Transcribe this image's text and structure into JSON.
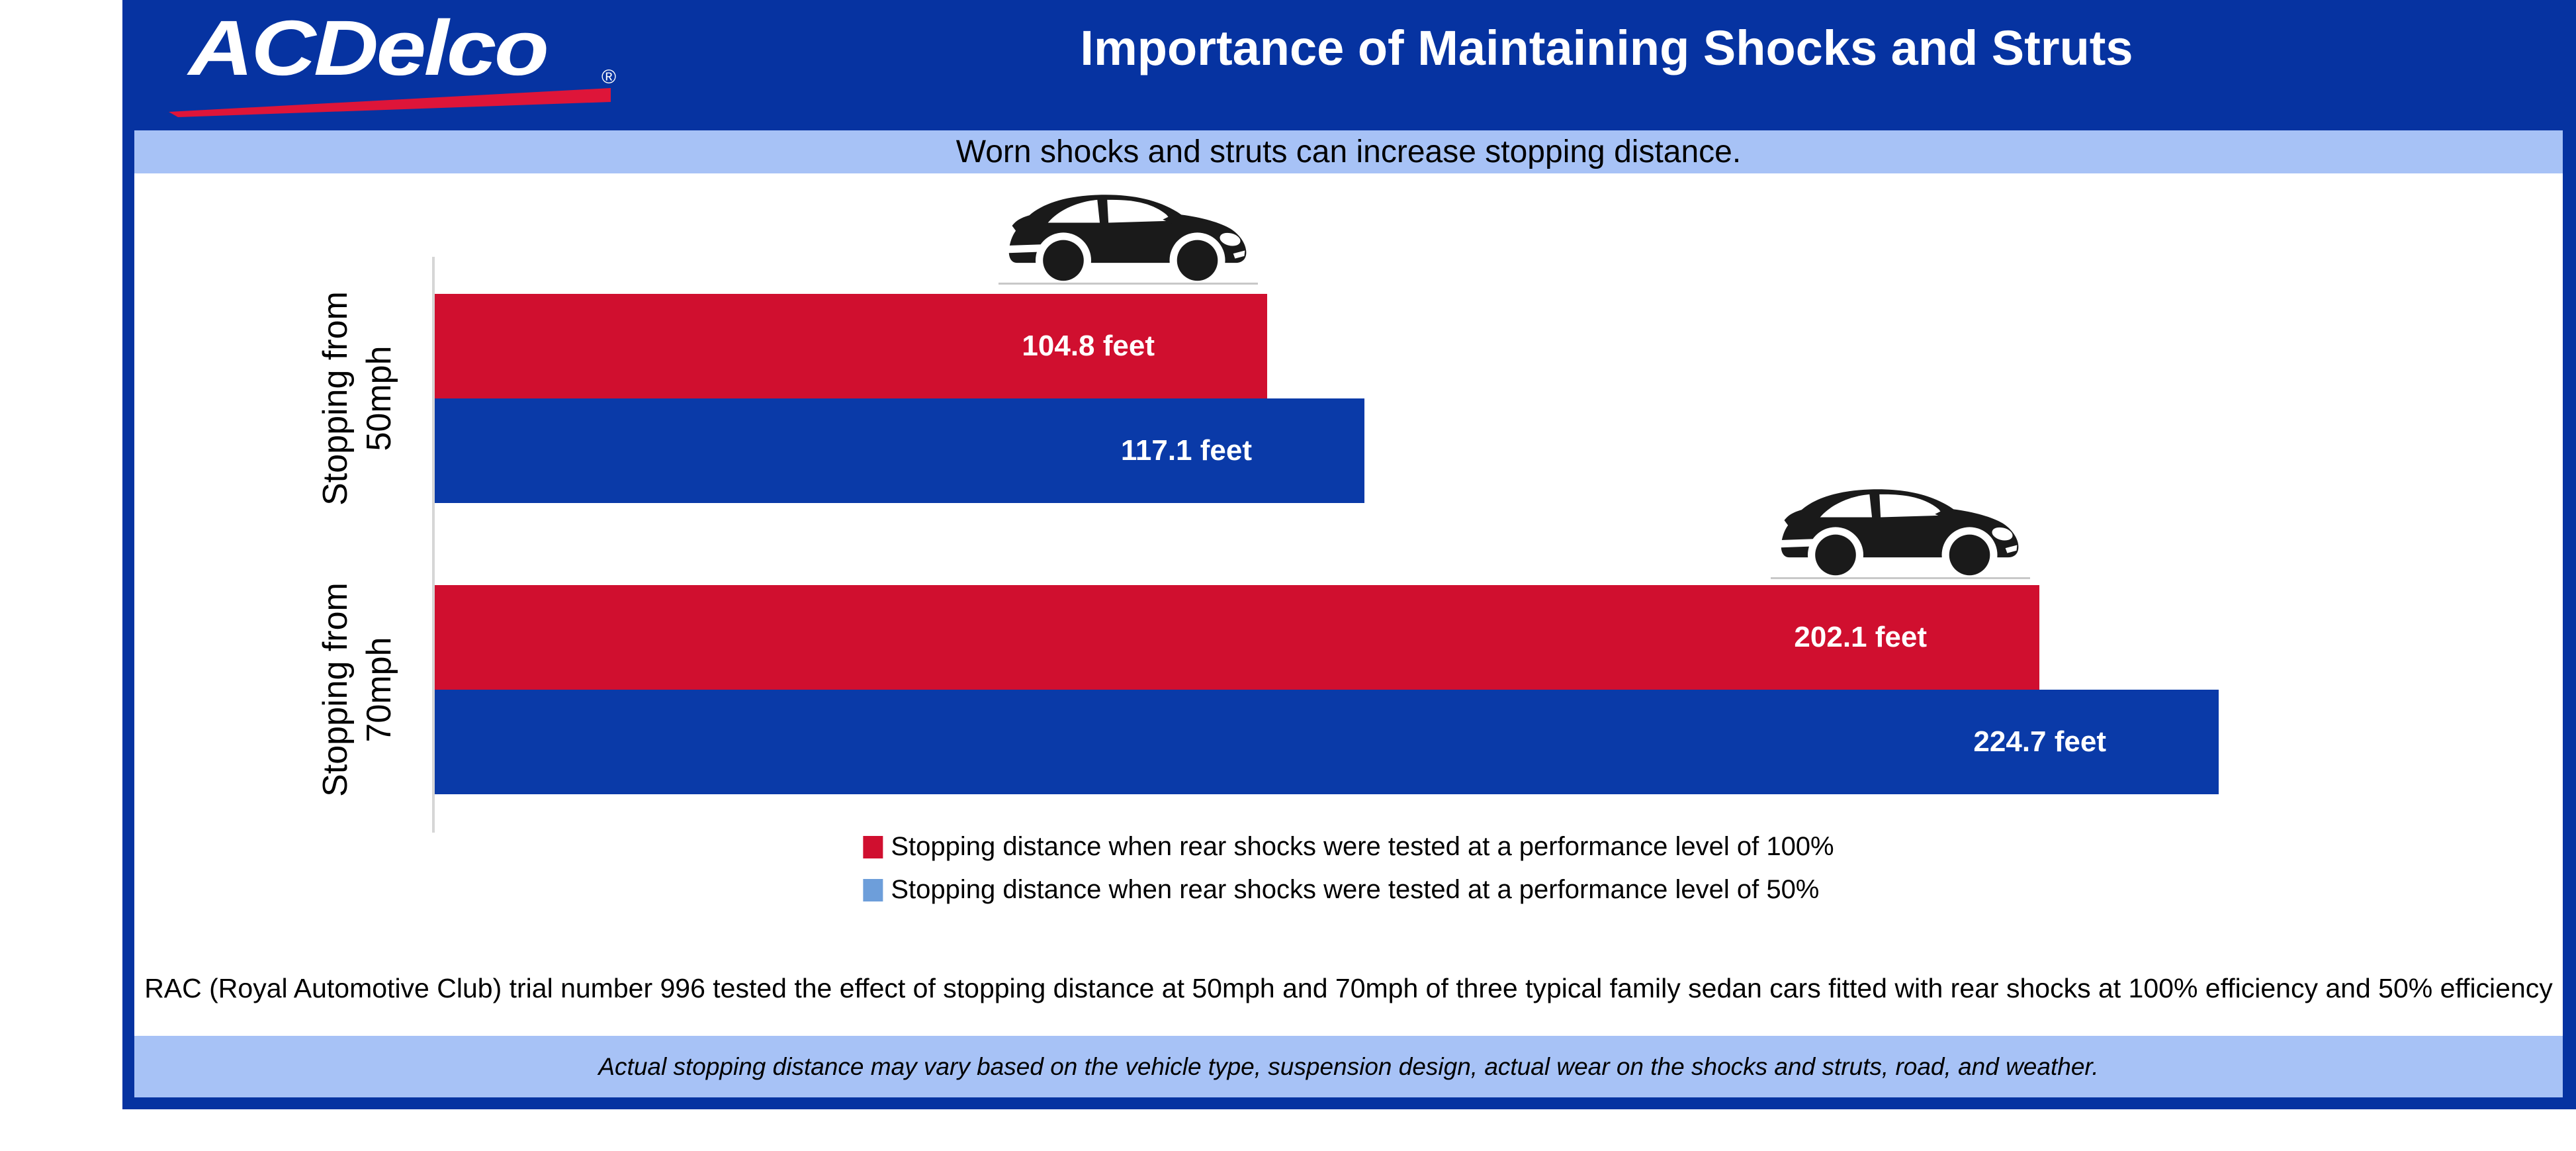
{
  "header": {
    "logo_text": "ACDelco",
    "logo_reg": "®",
    "title": "Importance of Maintaining Shocks and Struts"
  },
  "banner": {
    "text": "Worn shocks and struts can increase stopping distance."
  },
  "chart_data": {
    "type": "bar",
    "orientation": "horizontal",
    "title": "Importance of Maintaining Shocks and Struts",
    "subtitle": "Worn shocks and struts can increase stopping distance.",
    "unit": "feet",
    "categories": [
      {
        "line1": "Stopping from",
        "line2": "50mph"
      },
      {
        "line1": "Stopping from",
        "line2": "70mph"
      }
    ],
    "series": [
      {
        "name": "Stopping distance when rear shocks were tested at a performance level of 100%",
        "color": "#D00F2F",
        "legend_color": "#D00F2F",
        "values": [
          104.8,
          202.1
        ]
      },
      {
        "name": "Stopping distance when rear shocks were tested at a performance level of 50%",
        "color": "#0A3AA8",
        "legend_color": "#6D9EDA",
        "values": [
          117.1,
          224.7
        ]
      }
    ],
    "value_labels": [
      "104.8 feet",
      "117.1 feet",
      "202.1 feet",
      "224.7 feet"
    ],
    "xlim": [
      0,
      270
    ],
    "grid": false,
    "legend_position": "bottom-center"
  },
  "footnotes": {
    "rac": "RAC (Royal Automotive Club) trial number 996 tested the effect of stopping distance at 50mph and 70mph of three typical family sedan cars fitted with rear shocks at 100% efficiency and 50% efficiency",
    "disclaimer": "Actual stopping distance may vary based on the vehicle type, suspension design, actual wear on the shocks and struts, road, and weather."
  },
  "colors": {
    "frame_blue": "#0633A1",
    "band_blue": "#A7C2F6",
    "bar_red": "#D00F2F",
    "bar_blue": "#0A3AA8",
    "legend_blue": "#6D9EDA",
    "swoosh_red": "#DE1539",
    "axis_gray": "#D6D6D6",
    "car_black": "#1A1A1A",
    "text_black": "#000000",
    "text_white": "#FFFFFF"
  }
}
